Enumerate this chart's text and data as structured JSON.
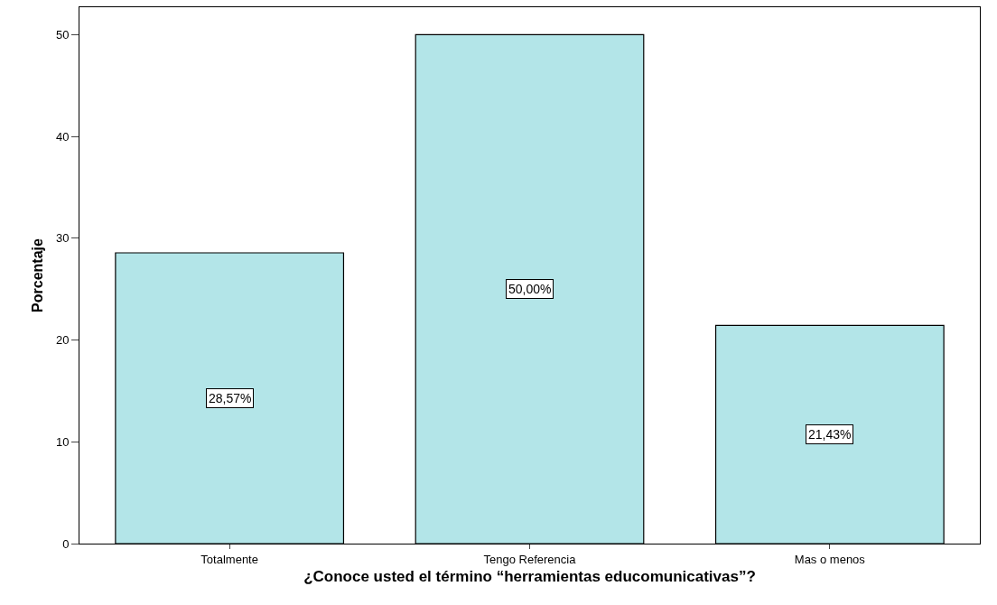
{
  "chart_data": {
    "type": "bar",
    "xlabel": "¿Conoce usted el término “herramientas educomunicativas”?",
    "ylabel": "Porcentaje",
    "categories": [
      "Totalmente",
      "Tengo Referencia",
      "Mas o menos"
    ],
    "values": [
      28.57,
      50.0,
      21.43
    ],
    "value_labels": [
      "28,57%",
      "50,00%",
      "21,43%"
    ],
    "color": "#b3e5e8",
    "ylim": [
      0,
      52.7
    ],
    "yticks": [
      0,
      10,
      20,
      30,
      40,
      50
    ]
  }
}
